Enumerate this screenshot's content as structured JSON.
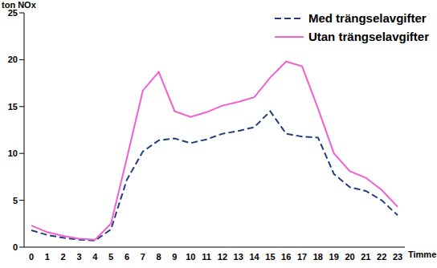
{
  "chart_data": {
    "type": "line",
    "x_label": "Timme",
    "y_label": "ton NOx",
    "categories": [
      "0",
      "1",
      "2",
      "3",
      "4",
      "5",
      "6",
      "7",
      "8",
      "9",
      "10",
      "11",
      "12",
      "13",
      "14",
      "15",
      "16",
      "17",
      "18",
      "19",
      "20",
      "21",
      "22",
      "23"
    ],
    "series": [
      {
        "name": "Med trängselavgifter",
        "color": "#1f3f7f",
        "line_style": "dashed",
        "values": [
          1.8,
          1.3,
          1.0,
          0.8,
          0.7,
          1.9,
          7.2,
          10.2,
          11.4,
          11.6,
          11.1,
          11.5,
          12.1,
          12.4,
          12.8,
          14.5,
          12.1,
          11.8,
          11.7,
          7.8,
          6.4,
          6.0,
          5.0,
          3.4
        ]
      },
      {
        "name": "Utan trängselavgifter",
        "color": "#f060d0",
        "line_style": "solid",
        "values": [
          2.3,
          1.6,
          1.2,
          0.9,
          0.8,
          2.5,
          9.5,
          16.7,
          18.7,
          14.5,
          13.9,
          14.4,
          15.1,
          15.5,
          16.0,
          18.1,
          19.8,
          19.3,
          14.8,
          10.0,
          8.1,
          7.4,
          6.1,
          4.3
        ]
      }
    ],
    "ylim": [
      0,
      25
    ],
    "yticks": [
      0,
      5,
      10,
      15,
      20,
      25
    ],
    "grid": false,
    "legend": "upper right"
  }
}
